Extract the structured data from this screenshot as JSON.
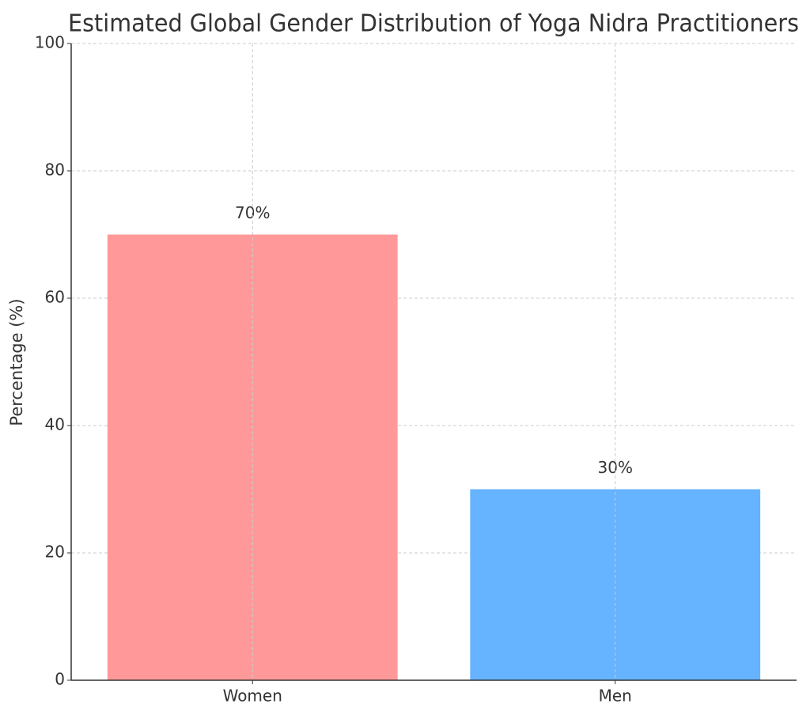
{
  "chart_data": {
    "type": "bar",
    "title": "Estimated Global Gender Distribution of Yoga Nidra Practitioners",
    "y_label": "Percentage (%)",
    "categories": [
      "Women",
      "Men"
    ],
    "values": [
      70,
      30
    ],
    "value_labels": [
      "70%",
      "30%"
    ],
    "colors": [
      "#ff9999",
      "#66b3ff"
    ],
    "ylim": [
      0,
      100
    ],
    "yticks": [
      0,
      20,
      40,
      60,
      80,
      100
    ],
    "grid": true
  }
}
